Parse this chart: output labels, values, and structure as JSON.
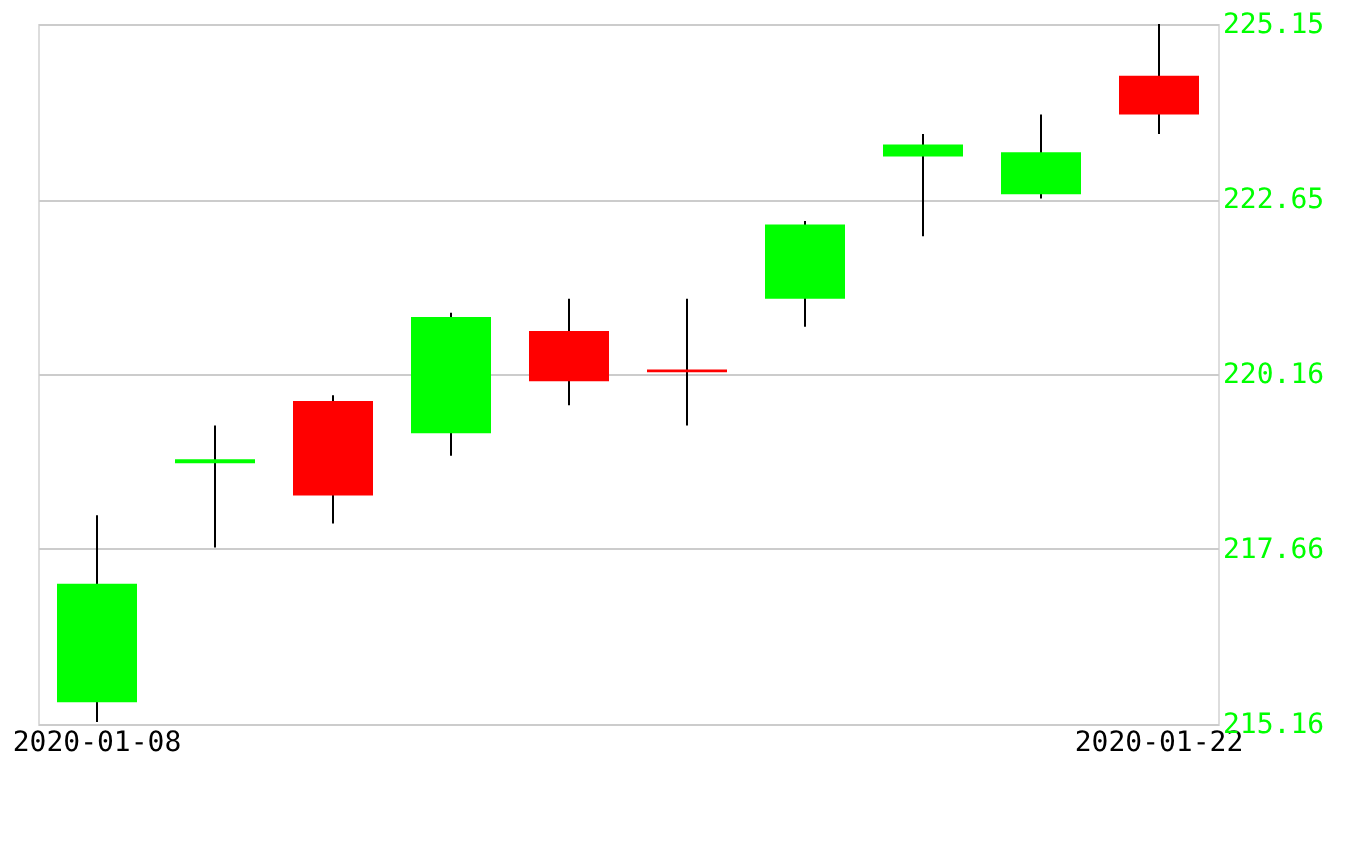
{
  "chart_data": {
    "type": "candlestick",
    "categories": [
      "2020-01-08",
      null,
      null,
      null,
      null,
      null,
      null,
      null,
      null,
      "2020-01-22"
    ],
    "ohlc": [
      [
        215.47,
        218.14,
        215.19,
        217.16
      ],
      [
        218.88,
        219.42,
        217.68,
        218.94
      ],
      [
        219.77,
        219.85,
        218.02,
        218.42
      ],
      [
        219.31,
        221.03,
        218.99,
        220.97
      ],
      [
        220.77,
        221.23,
        219.71,
        220.05
      ],
      [
        220.22,
        221.23,
        219.42,
        220.18
      ],
      [
        221.23,
        222.34,
        220.83,
        222.29
      ],
      [
        223.26,
        223.58,
        222.12,
        223.43
      ],
      [
        222.72,
        223.86,
        222.66,
        223.32
      ],
      [
        224.41,
        225.15,
        223.58,
        223.86
      ]
    ],
    "colors": [
      "#00ff00",
      "#00ff00",
      "#ff0000",
      "#00ff00",
      "#ff0000",
      "#ff0000",
      "#00ff00",
      "#00ff00",
      "#00ff00",
      "#ff0000"
    ],
    "ylim": [
      215.16,
      225.15
    ],
    "yticks": [
      215.16,
      217.66,
      220.16,
      222.65,
      225.15
    ],
    "grid": "y"
  }
}
